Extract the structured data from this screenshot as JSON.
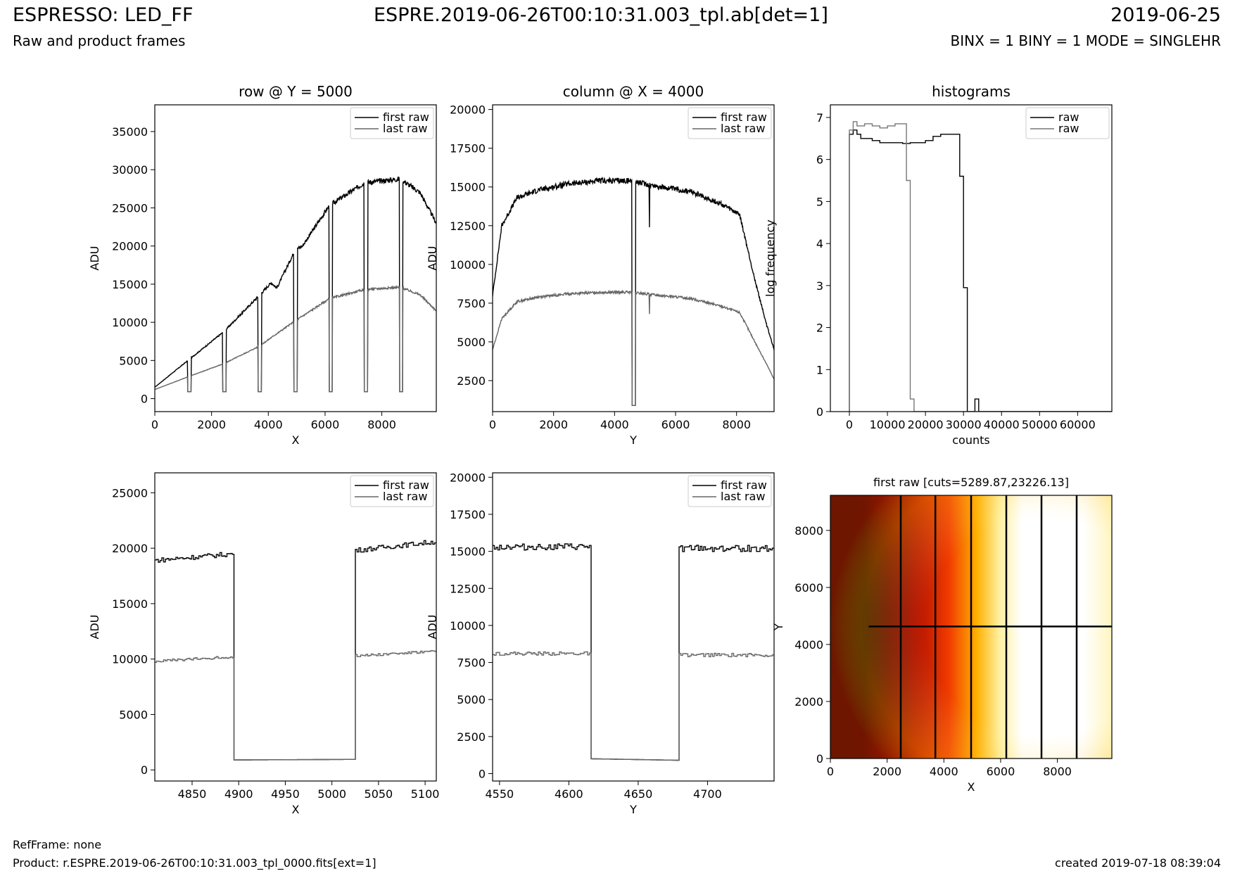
{
  "header": {
    "title_left": "ESPRESSO: LED_FF",
    "subtitle_left": "Raw and product frames",
    "title_center": "ESPRE.2019-06-26T00:10:31.003_tpl.ab[det=1]",
    "title_right": "2019-06-25",
    "subtitle_right": "BINX = 1 BINY = 1 MODE = SINGLEHR"
  },
  "footer": {
    "ref_frame": "RefFrame: none",
    "product": "Product: r.ESPRE.2019-06-26T00:10:31.003_tpl_0000.fits[ext=1]",
    "created": "created 2019-07-18 08:39:04"
  },
  "colors": {
    "first_raw": "#000000",
    "last_raw": "#666666"
  },
  "chart_data": [
    {
      "id": "row-full",
      "type": "line",
      "title": "row @ Y = 5000",
      "xlabel": "X",
      "ylabel": "ADU",
      "xlim": [
        0,
        9920
      ],
      "ylim": [
        -1700,
        38500
      ],
      "xticks": [
        0,
        2000,
        4000,
        6000,
        8000
      ],
      "yticks": [
        0,
        5000,
        10000,
        15000,
        20000,
        25000,
        30000,
        35000
      ],
      "legend": {
        "position": "top-right",
        "entries": [
          "first raw",
          "last raw"
        ]
      },
      "series": [
        {
          "name": "first raw",
          "x": [
            0,
            1200,
            2440,
            3700,
            4100,
            4300,
            4950,
            5200,
            6150,
            7400,
            8650,
            9350,
            9920
          ],
          "values": [
            1500,
            5100,
            8800,
            13600,
            15200,
            14500,
            19500,
            20000,
            25300,
            28300,
            28800,
            27000,
            23000
          ]
        },
        {
          "name": "last raw",
          "x": [
            0,
            1200,
            2440,
            3700,
            4100,
            4950,
            6150,
            7400,
            8650,
            9350,
            9920
          ],
          "values": [
            1200,
            2900,
            4600,
            6900,
            8000,
            10200,
            13100,
            14300,
            14600,
            13600,
            11500
          ]
        }
      ],
      "gaps_x": [
        1220,
        2450,
        3700,
        4960,
        6200,
        7440,
        8680
      ],
      "gap_value": 900
    },
    {
      "id": "column-full",
      "type": "line",
      "title": "column @ X = 4000",
      "xlabel": "Y",
      "ylabel": "ADU",
      "xlim": [
        0,
        9230
      ],
      "ylim": [
        500,
        20300
      ],
      "xticks": [
        0,
        2000,
        4000,
        6000,
        8000
      ],
      "yticks": [
        2500,
        5000,
        7500,
        10000,
        12500,
        15000,
        17500,
        20000
      ],
      "legend": {
        "position": "top-right",
        "entries": [
          "first raw",
          "last raw"
        ]
      },
      "series": [
        {
          "name": "first raw",
          "x": [
            0,
            300,
            800,
            1500,
            2500,
            3500,
            4500,
            5500,
            6500,
            7500,
            8100,
            8600,
            9000,
            9230
          ],
          "values": [
            8000,
            12500,
            14300,
            14800,
            15200,
            15400,
            15400,
            15000,
            14700,
            13900,
            13200,
            9000,
            6000,
            4500
          ]
        },
        {
          "name": "last raw",
          "x": [
            0,
            300,
            800,
            1500,
            2500,
            3500,
            4500,
            5500,
            6500,
            7500,
            8100,
            8600,
            9000,
            9230
          ],
          "values": [
            4500,
            6500,
            7600,
            7900,
            8100,
            8200,
            8200,
            8000,
            7800,
            7300,
            6900,
            5000,
            3500,
            2600
          ]
        }
      ],
      "gaps_x": [
        4630
      ],
      "gap_value": 900,
      "dip": {
        "x": 5140,
        "first": 12400,
        "last": 6800
      }
    },
    {
      "id": "histograms",
      "type": "step",
      "title": "histograms",
      "xlabel": "counts",
      "ylabel": "log frequency",
      "xlim": [
        -5000,
        69000
      ],
      "ylim": [
        0,
        7.3
      ],
      "xticks": [
        0,
        10000,
        20000,
        30000,
        40000,
        50000,
        60000
      ],
      "yticks": [
        0,
        1,
        2,
        3,
        4,
        5,
        6,
        7
      ],
      "legend": {
        "position": "top-right",
        "entries": [
          "raw",
          "raw"
        ]
      },
      "series": [
        {
          "name": "raw",
          "x": [
            0,
            1000,
            2000,
            3000,
            4000,
            6000,
            8000,
            10000,
            12000,
            14000,
            16000,
            18000,
            20000,
            22000,
            24000,
            26000,
            28000,
            29000,
            30000,
            31000,
            32000,
            33000,
            34000
          ],
          "values": [
            6.6,
            6.7,
            6.6,
            6.5,
            6.5,
            6.45,
            6.4,
            6.4,
            6.4,
            6.38,
            6.4,
            6.4,
            6.45,
            6.55,
            6.6,
            6.6,
            6.6,
            5.6,
            2.95,
            0,
            0,
            0.3,
            0
          ]
        },
        {
          "name": "raw",
          "x": [
            0,
            1000,
            2000,
            4000,
            6000,
            8000,
            10000,
            12000,
            13000,
            14000,
            15000,
            16000,
            17000
          ],
          "values": [
            6.7,
            6.9,
            6.8,
            6.85,
            6.8,
            6.75,
            6.8,
            6.85,
            6.85,
            6.85,
            5.5,
            0.3,
            0
          ]
        }
      ]
    },
    {
      "id": "row-zoom",
      "type": "line",
      "title": "",
      "xlabel": "X",
      "ylabel": "ADU",
      "xlim": [
        4810,
        5112
      ],
      "ylim": [
        -1000,
        26800
      ],
      "xticks": [
        4850,
        4900,
        4950,
        5000,
        5050,
        5100
      ],
      "yticks": [
        0,
        5000,
        10000,
        15000,
        20000,
        25000
      ],
      "legend": {
        "position": "top-right",
        "entries": [
          "first raw",
          "last raw"
        ]
      },
      "gap": [
        4894,
        5024
      ],
      "series": [
        {
          "name": "first raw",
          "left": [
            18900,
            19500
          ],
          "right": [
            19800,
            20600
          ],
          "gap_values": [
            900,
            950
          ]
        },
        {
          "name": "last raw",
          "left": [
            9800,
            10200
          ],
          "right": [
            10300,
            10700
          ],
          "gap_values": [
            900,
            950
          ]
        }
      ]
    },
    {
      "id": "column-zoom",
      "type": "line",
      "title": "",
      "xlabel": "Y",
      "ylabel": "ADU",
      "xlim": [
        4545,
        4748
      ],
      "ylim": [
        -500,
        20300
      ],
      "xticks": [
        4550,
        4600,
        4650,
        4700
      ],
      "yticks": [
        0,
        2500,
        5000,
        7500,
        10000,
        12500,
        15000,
        17500,
        20000
      ],
      "legend": {
        "position": "top-right",
        "entries": [
          "first raw",
          "last raw"
        ]
      },
      "gap": [
        4616,
        4679
      ],
      "series": [
        {
          "name": "first raw",
          "left": [
            15300,
            15300
          ],
          "right": [
            15200,
            15200
          ],
          "gap_values": [
            1000,
            900
          ]
        },
        {
          "name": "last raw",
          "left": [
            8100,
            8100
          ],
          "right": [
            8000,
            8000
          ],
          "gap_values": [
            1000,
            900
          ]
        }
      ]
    },
    {
      "id": "image",
      "type": "heatmap",
      "title": "first raw [cuts=5289.87,23226.13]",
      "xlabel": "X",
      "ylabel": "Y",
      "xlim": [
        0,
        9920
      ],
      "ylim": [
        0,
        9230
      ],
      "xticks": [
        0,
        2000,
        4000,
        6000,
        8000
      ],
      "yticks": [
        0,
        2000,
        4000,
        6000,
        8000
      ],
      "vertical_lines_x": [
        2480,
        3700,
        4960,
        6200,
        7440,
        8680
      ],
      "horizontal_line_y": 4630
    }
  ]
}
